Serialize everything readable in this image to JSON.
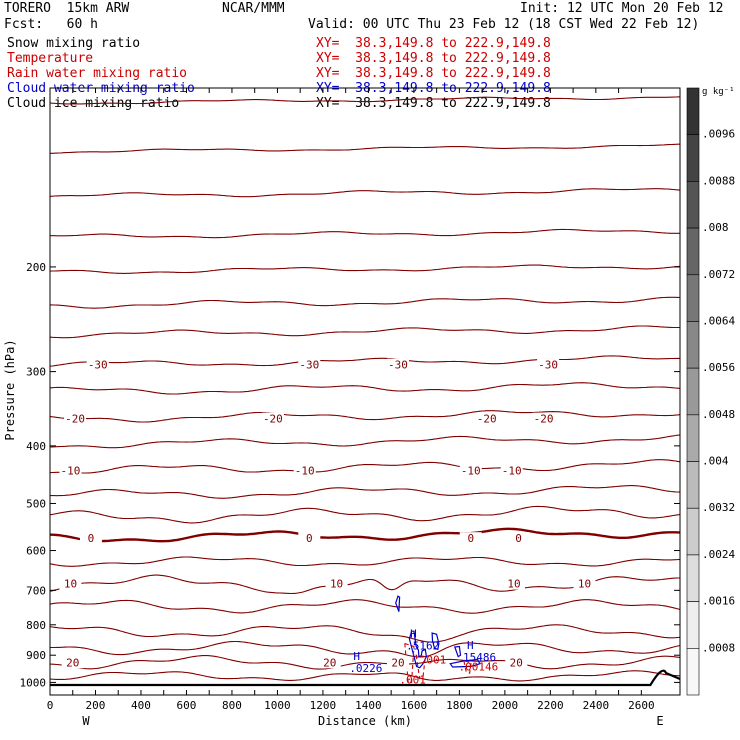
{
  "header": {
    "model": "TORERO  15km ARW",
    "org": "NCAR/MMM",
    "init": "Init: 12 UTC Mon 20 Feb 12",
    "fcst": "Fcst:   60 h",
    "valid": "Valid: 00 UTC Thu 23 Feb 12 (18 CST Wed 22 Feb 12)"
  },
  "fields": [
    {
      "name": "Snow mixing ratio",
      "xy": "XY=  38.3,149.8 to 222.9,149.8",
      "color": "#000000"
    },
    {
      "name": "Temperature",
      "xy": "XY=  38.3,149.8 to 222.9,149.8",
      "color": "#cc0000"
    },
    {
      "name": "Rain water mixing ratio",
      "xy": "XY=  38.3,149.8 to 222.9,149.8",
      "color": "#cc0000"
    },
    {
      "name": "Cloud water mixing ratio",
      "xy": "XY=  38.3,149.8 to 222.9,149.8",
      "color": "#0000cc"
    },
    {
      "name": "Cloud ice mixing ratio",
      "xy": "XY=  38.3,149.8 to 222.9,149.8",
      "color": "#000000"
    }
  ],
  "chart_data": {
    "type": "line",
    "title": "",
    "xlabel": "Distance (km)",
    "ylabel": "Pressure (hPa)",
    "xlim": [
      0,
      2770
    ],
    "ylim": [
      1050,
      100
    ],
    "y_scale": "log",
    "x_ticks": [
      0,
      100,
      200,
      300,
      400,
      500,
      600,
      700,
      800,
      900,
      1000,
      1100,
      1200,
      1300,
      1400,
      1500,
      1600,
      1700,
      1800,
      1900,
      2000,
      2100,
      2200,
      2300,
      2400,
      2500,
      2600
    ],
    "x_tick_labels": [
      "0",
      "200",
      "400",
      "600",
      "800",
      "1000",
      "1200",
      "1400",
      "1600",
      "1800",
      "2000",
      "2200",
      "2400",
      "2600"
    ],
    "x_tick_label_values": [
      0,
      200,
      400,
      600,
      800,
      1000,
      1200,
      1400,
      1600,
      1800,
      2000,
      2200,
      2400,
      2600
    ],
    "y_ticks": [
      200,
      300,
      400,
      500,
      600,
      700,
      800,
      900,
      1000
    ],
    "y_tick_labels": [
      "200",
      "300",
      "400",
      "500",
      "600",
      "700",
      "800",
      "900",
      "1000"
    ],
    "side_labels": {
      "left": "W",
      "right": "E"
    },
    "temperature_isotherms": [
      {
        "p": 106,
        "var": 2,
        "label": ""
      },
      {
        "p": 128,
        "var": 2,
        "label": ""
      },
      {
        "p": 152,
        "var": 3,
        "label": ""
      },
      {
        "p": 178,
        "var": 3,
        "label": ""
      },
      {
        "p": 204,
        "var": 3,
        "label": ""
      },
      {
        "p": 232,
        "var": 4,
        "label": ""
      },
      {
        "p": 260,
        "var": 4,
        "label": ""
      },
      {
        "p": 292,
        "var": 4,
        "label": "-30",
        "label_x": [
          210,
          1140,
          1530,
          2190
        ]
      },
      {
        "p": 324,
        "var": 5,
        "label": ""
      },
      {
        "p": 360,
        "var": 5,
        "label": "-20",
        "label_x": [
          110,
          980,
          1920,
          2170
        ]
      },
      {
        "p": 398,
        "var": 5,
        "label": ""
      },
      {
        "p": 440,
        "var": 6,
        "label": "-10",
        "label_x": [
          90,
          1120,
          1850,
          2030
        ]
      },
      {
        "p": 484,
        "var": 6,
        "label": ""
      },
      {
        "p": 528,
        "var": 8,
        "label": ""
      },
      {
        "p": 572,
        "var": 6,
        "label": "0",
        "label_x": [
          180,
          1140,
          1850,
          2060
        ],
        "bold": true
      },
      {
        "p": 626,
        "var": 6,
        "label": ""
      },
      {
        "p": 682,
        "var": 10,
        "label": "10",
        "label_x": [
          90,
          1260,
          2040,
          2350
        ]
      },
      {
        "p": 745,
        "var": 8,
        "label": ""
      },
      {
        "p": 820,
        "var": 8,
        "label": ""
      },
      {
        "p": 875,
        "var": 8,
        "label": ""
      },
      {
        "p": 925,
        "var": 8,
        "label": "20",
        "label_x": [
          100,
          1230,
          1530,
          2050
        ]
      },
      {
        "p": 975,
        "var": 6,
        "label": ""
      }
    ],
    "series": [
      {
        "name": "Cloud water mixing ratio",
        "maxima": [
          {
            "x": 1360,
            "p": 960,
            "value": ".0226"
          },
          {
            "x": 1610,
            "p": 880,
            "value": ".5162"
          },
          {
            "x": 1860,
            "p": 920,
            "value": "15486"
          }
        ]
      },
      {
        "name": "Rain water mixing ratio",
        "maxima": [
          {
            "x": 1670,
            "p": 930,
            "value": ".001"
          },
          {
            "x": 1840,
            "p": 955,
            "value": ".00146"
          },
          {
            "x": 1580,
            "p": 1005,
            "value": ".001"
          }
        ]
      }
    ],
    "terrain": {
      "p": 1010,
      "bump_x": [
        2640,
        2770
      ]
    },
    "colorbar": {
      "unit": "g kg⁻¹",
      "labels": [
        ".0096",
        ".0088",
        ".008",
        ".0072",
        ".0064",
        ".0056",
        ".0048",
        ".004",
        ".0032",
        ".0024",
        ".0016",
        ".0008"
      ],
      "colors": [
        "#333333",
        "#444444",
        "#555555",
        "#666666",
        "#777777",
        "#888888",
        "#999999",
        "#aaaaaa",
        "#bbbbbb",
        "#cccccc",
        "#dddddd",
        "#eeeeee",
        "#f7f7f7"
      ]
    }
  }
}
